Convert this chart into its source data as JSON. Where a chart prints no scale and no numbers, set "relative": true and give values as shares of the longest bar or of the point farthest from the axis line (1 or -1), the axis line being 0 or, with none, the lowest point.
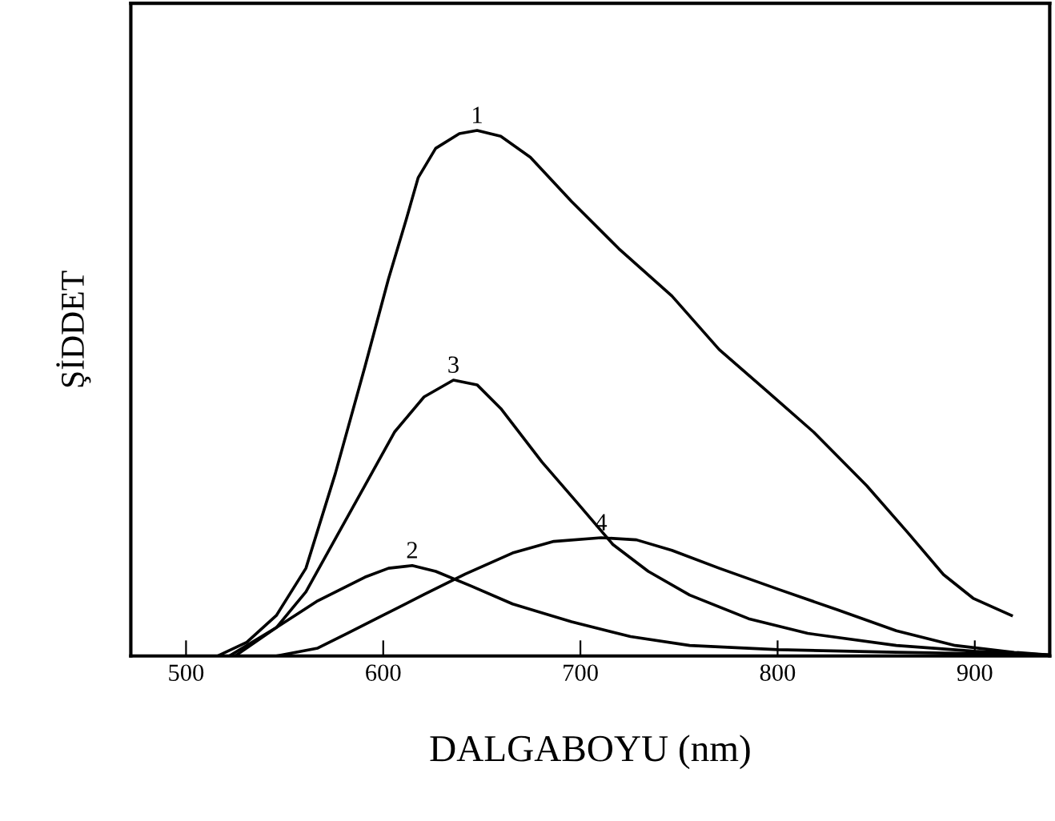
{
  "chart_data": {
    "type": "line",
    "relative": true,
    "xlabel": "DALGABOYU (nm)",
    "ylabel": "ŞİDDET",
    "xlim": [
      472,
      938
    ],
    "xticks": [
      500,
      600,
      700,
      800,
      900
    ],
    "tick_labels": "x",
    "grid": false,
    "marker": "none",
    "line_style": "solid",
    "series": [
      {
        "name": "1",
        "color": "#000000",
        "x": [
          515.9,
          530.8,
          545.8,
          560.8,
          575.7,
          590.7,
          602.7,
          611.7,
          617.7,
          626.6,
          638.6,
          647.6,
          659.6,
          674.6,
          695.5,
          719.5,
          746.4,
          770.4,
          794.3,
          818.3,
          845.2,
          866.2,
          884.1,
          899.1,
          918.6
        ],
        "values": [
          0,
          0.026,
          0.077,
          0.167,
          0.347,
          0.55,
          0.718,
          0.831,
          0.91,
          0.966,
          0.994,
          1,
          0.989,
          0.949,
          0.865,
          0.775,
          0.685,
          0.583,
          0.505,
          0.426,
          0.324,
          0.234,
          0.155,
          0.11,
          0.077
        ]
      },
      {
        "name": "2",
        "color": "#000000",
        "x": [
          521.9,
          545.8,
          566.8,
          590.7,
          602.7,
          614.7,
          626.6,
          644.6,
          665.6,
          695.5,
          725.4,
          755.4,
          800.3,
          860.2,
          938
        ],
        "values": [
          0,
          0.054,
          0.105,
          0.15,
          0.167,
          0.172,
          0.161,
          0.133,
          0.099,
          0.065,
          0.037,
          0.02,
          0.012,
          0.007,
          0.002
        ]
      },
      {
        "name": "3",
        "color": "#000000",
        "x": [
          524.9,
          545.8,
          560.8,
          575.7,
          590.7,
          605.7,
          620.7,
          635.6,
          647.6,
          659.6,
          680.5,
          698.5,
          716.5,
          734.4,
          755.4,
          785.3,
          815.3,
          860.2,
          900,
          938
        ],
        "values": [
          0,
          0.054,
          0.122,
          0.223,
          0.324,
          0.426,
          0.493,
          0.525,
          0.516,
          0.471,
          0.369,
          0.291,
          0.212,
          0.161,
          0.116,
          0.071,
          0.043,
          0.02,
          0.009,
          0.002
        ]
      },
      {
        "name": "4",
        "color": "#000000",
        "x": [
          545.8,
          566.8,
          581.7,
          599.7,
          620.7,
          641.6,
          665.6,
          686.5,
          710.5,
          728.4,
          746.4,
          770.4,
          800.3,
          830.3,
          860.2,
          890.1,
          920,
          938
        ],
        "values": [
          0,
          0.015,
          0.043,
          0.077,
          0.117,
          0.156,
          0.196,
          0.218,
          0.225,
          0.221,
          0.201,
          0.167,
          0.127,
          0.088,
          0.048,
          0.02,
          0.007,
          0.002
        ]
      }
    ]
  }
}
